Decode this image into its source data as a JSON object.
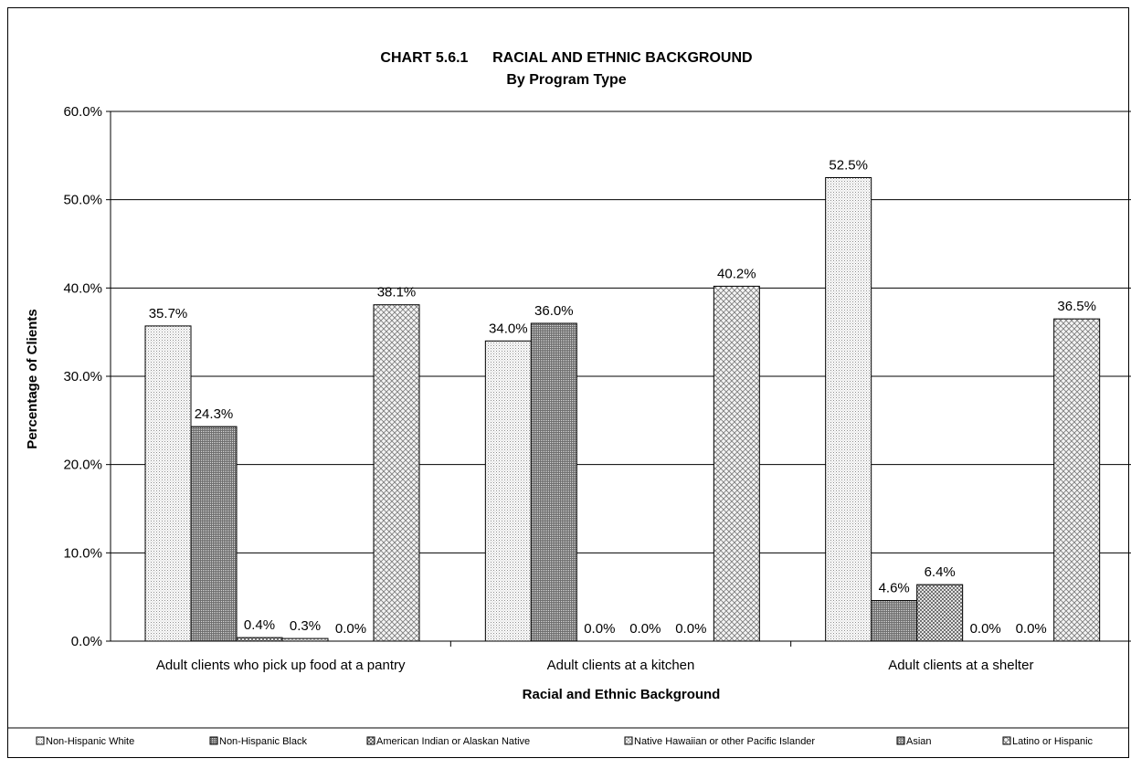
{
  "chart_data": {
    "type": "bar",
    "title": "CHART 5.6.1      RACIAL AND ETHNIC BACKGROUND",
    "subtitle": "By Program Type",
    "xlabel": "Racial and Ethnic Background",
    "ylabel": "Percentage of Clients",
    "ylim": [
      0,
      60
    ],
    "yticks": [
      "0.0%",
      "10.0%",
      "20.0%",
      "30.0%",
      "40.0%",
      "50.0%",
      "60.0%"
    ],
    "grid": true,
    "legend_position": "bottom",
    "categories": [
      "Adult clients who pick up food at a pantry",
      "Adult clients at a kitchen",
      "Adult clients at a shelter"
    ],
    "series": [
      {
        "name": "Non-Hispanic White",
        "values": [
          35.7,
          34.0,
          52.5
        ],
        "labels": [
          "35.7%",
          "34.0%",
          "52.5%"
        ],
        "pattern": "dots-light"
      },
      {
        "name": "Non-Hispanic Black",
        "values": [
          24.3,
          36.0,
          4.6
        ],
        "labels": [
          "24.3%",
          "36.0%",
          "4.6%"
        ],
        "pattern": "dense-dark"
      },
      {
        "name": "American Indian or Alaskan Native",
        "values": [
          0.4,
          0.0,
          6.4
        ],
        "labels": [
          "0.4%",
          "0.0%",
          "6.4%"
        ],
        "pattern": "crosshatch-medium"
      },
      {
        "name": "Native Hawaiian or other Pacific Islander",
        "values": [
          0.3,
          0.0,
          0.0
        ],
        "labels": [
          "0.3%",
          "0.0%",
          "0.0%"
        ],
        "pattern": "crosshatch-light"
      },
      {
        "name": "Asian",
        "values": [
          0.0,
          0.0,
          0.0
        ],
        "labels": [
          "0.0%",
          "0.0%",
          "0.0%"
        ],
        "pattern": "dense-grid"
      },
      {
        "name": "Latino or Hispanic",
        "values": [
          38.1,
          40.2,
          36.5
        ],
        "labels": [
          "38.1%",
          "40.2%",
          "36.5%"
        ],
        "pattern": "crosshatch-wide"
      }
    ]
  }
}
